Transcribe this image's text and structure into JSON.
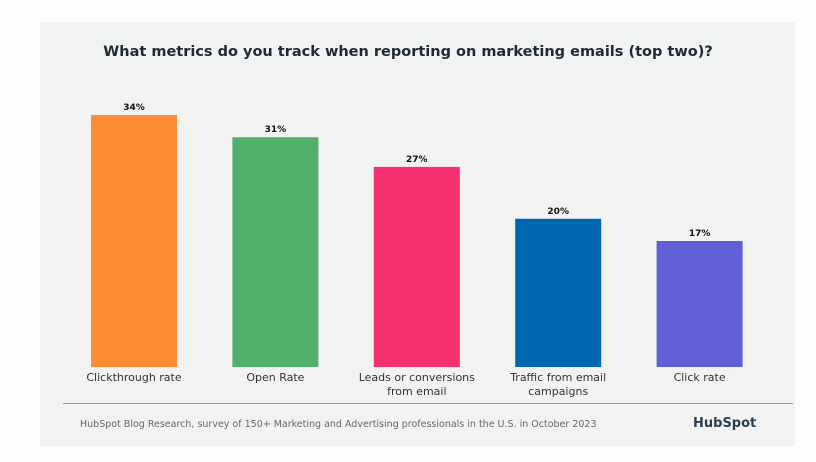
{
  "chart_data": {
    "type": "bar",
    "title": "What metrics do you track when reporting on marketing emails (top two)?",
    "categories": [
      "Clickthrough rate",
      "Open Rate",
      "Leads or conversions from email",
      "Traffic from email campaigns",
      "Click rate"
    ],
    "values": [
      34,
      31,
      27,
      20,
      17
    ],
    "value_labels": [
      "34%",
      "31%",
      "27%",
      "20%",
      "17%"
    ],
    "colors": [
      "#FF8C33",
      "#4FAF6B",
      "#F5306E",
      "#0066B0",
      "#6060D8"
    ],
    "ylim": [
      0,
      34
    ],
    "grid": false,
    "legend": "none"
  },
  "footer": {
    "source": "HubSpot Blog Research, survey of 150+ Marketing and Advertising professionals in the U.S. in October 2023",
    "logo": "HubSpot"
  }
}
